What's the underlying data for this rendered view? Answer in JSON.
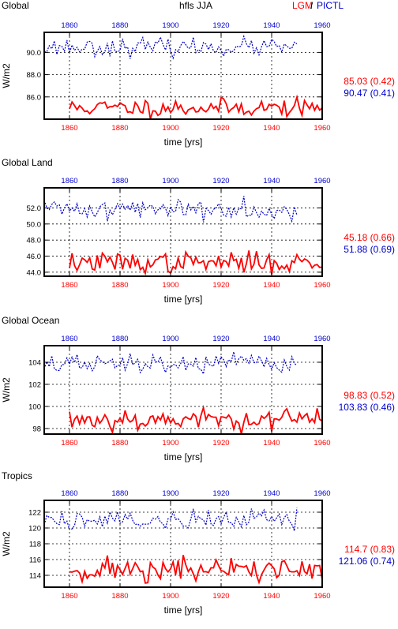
{
  "header": {
    "variable": "hfls JJA",
    "legend_lgm": "LGM",
    "legend_sep": "/",
    "legend_pictl": "PICTL"
  },
  "colors": {
    "lgm": "#ff0000",
    "pictl": "#0000cc",
    "axis": "#000000",
    "grid": "#000000"
  },
  "chart_data": [
    {
      "type": "line",
      "title": "Global",
      "ylabel": "W/m2",
      "xlabel": "time [yrs]",
      "xlim": [
        1850,
        1960
      ],
      "ylim": [
        84.0,
        91.8
      ],
      "xticks": [
        1860,
        1880,
        1900,
        1920,
        1940,
        1960
      ],
      "yticks": [
        86.0,
        88.0,
        90.0
      ],
      "yticklabels": [
        "86.0",
        "88.0",
        "90.0"
      ],
      "series": [
        {
          "name": "LGM",
          "stat_label": "85.03 (0.42)",
          "mean": 85.03,
          "std": 0.42,
          "x_range": [
            1860,
            1960
          ],
          "seed": 11
        },
        {
          "name": "PICTL",
          "stat_label": "90.47 (0.41)",
          "mean": 90.47,
          "std": 0.41,
          "x_range": [
            1850,
            1950
          ],
          "seed": 23
        }
      ]
    },
    {
      "type": "line",
      "title": "Global Land",
      "ylabel": "",
      "xlabel": "time [yrs]",
      "xlim": [
        1850,
        1960
      ],
      "ylim": [
        43.5,
        54.5
      ],
      "xticks": [
        1860,
        1880,
        1900,
        1920,
        1940,
        1960
      ],
      "yticks": [
        44.0,
        46.0,
        48.0,
        50.0,
        52.0
      ],
      "yticklabels": [
        "44.0",
        "46.0",
        "48.0",
        "50.0",
        "52.0"
      ],
      "series": [
        {
          "name": "LGM",
          "stat_label": "45.18 (0.66)",
          "mean": 45.18,
          "std": 0.66,
          "x_range": [
            1860,
            1960
          ],
          "seed": 37
        },
        {
          "name": "PICTL",
          "stat_label": "51.88 (0.69)",
          "mean": 51.88,
          "std": 0.69,
          "x_range": [
            1850,
            1950
          ],
          "seed": 41
        }
      ]
    },
    {
      "type": "line",
      "title": "Global Ocean",
      "ylabel": "W/m2",
      "xlabel": "time [yrs]",
      "xlim": [
        1850,
        1960
      ],
      "ylim": [
        97.5,
        105.5
      ],
      "xticks": [
        1860,
        1880,
        1900,
        1920,
        1940,
        1960
      ],
      "yticks": [
        98,
        100,
        102,
        104
      ],
      "yticklabels": [
        "98",
        "100",
        "102",
        "104"
      ],
      "series": [
        {
          "name": "LGM",
          "stat_label": "98.83 (0.52)",
          "mean": 98.83,
          "std": 0.52,
          "x_range": [
            1860,
            1960
          ],
          "seed": 53
        },
        {
          "name": "PICTL",
          "stat_label": "103.83 (0.46)",
          "mean": 103.83,
          "std": 0.46,
          "x_range": [
            1850,
            1950
          ],
          "seed": 67
        }
      ]
    },
    {
      "type": "line",
      "title": "Tropics",
      "ylabel": "W/m2",
      "xlabel": "time [yrs]",
      "xlim": [
        1850,
        1960
      ],
      "ylim": [
        112.5,
        123.5
      ],
      "xticks": [
        1860,
        1880,
        1900,
        1920,
        1940,
        1960
      ],
      "yticks": [
        114,
        116,
        118,
        120,
        122
      ],
      "yticklabels": [
        "114",
        "116",
        "118",
        "120",
        "122"
      ],
      "series": [
        {
          "name": "LGM",
          "stat_label": "114.7 (0.83)",
          "mean": 114.7,
          "std": 0.83,
          "x_range": [
            1860,
            1960
          ],
          "seed": 71
        },
        {
          "name": "PICTL",
          "stat_label": "121.06 (0.74)",
          "mean": 121.06,
          "std": 0.74,
          "x_range": [
            1850,
            1950
          ],
          "seed": 89
        }
      ]
    }
  ]
}
